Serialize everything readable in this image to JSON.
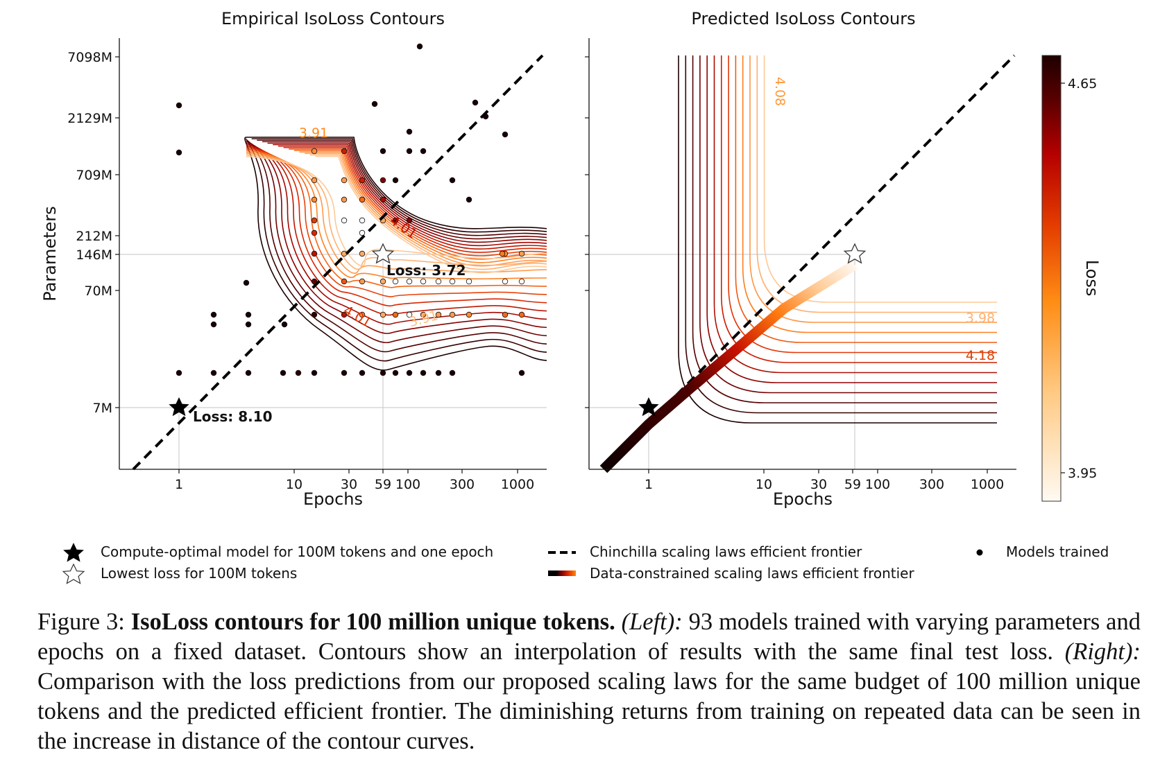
{
  "chart_data": [
    {
      "type": "contour",
      "title": "Empirical IsoLoss Contours",
      "xlabel": "Epochs",
      "ylabel": "Parameters",
      "x_scale": "log",
      "y_scale": "log",
      "x_ticks": [
        "1",
        "10",
        "30",
        "59",
        "100",
        "300",
        "1000"
      ],
      "y_ticks": [
        "7M",
        "70M",
        "146M",
        "212M",
        "709M",
        "2129M",
        "7098M"
      ],
      "contour_labels": [
        "3.91",
        "4.01",
        "4.01",
        "3.91"
      ],
      "annotations": [
        {
          "text": "Loss: 8.10",
          "marker": "filled-star",
          "epochs": 1,
          "params": "7M"
        },
        {
          "text": "Loss: 3.72",
          "marker": "open-star",
          "epochs": 59,
          "params": "146M"
        }
      ],
      "frontier": "Chinchilla scaling laws efficient frontier (dashed)",
      "points_description": "93 models trained (dots colored by final loss)"
    },
    {
      "type": "contour",
      "title": "Predicted IsoLoss Contours",
      "xlabel": "Epochs",
      "x_scale": "log",
      "y_scale": "log",
      "x_ticks": [
        "1",
        "10",
        "30",
        "59",
        "100",
        "300",
        "1000"
      ],
      "contour_labels": [
        "4.08",
        "3.98",
        "4.18"
      ],
      "colorbar": {
        "label": "Loss",
        "ticks": [
          "4.65",
          "3.95"
        ],
        "min": 3.93,
        "max": 4.67
      },
      "markers": [
        {
          "marker": "filled-star",
          "epochs": 1,
          "params": "7M"
        },
        {
          "marker": "open-star",
          "epochs": 59,
          "params": "146M"
        }
      ]
    }
  ],
  "legend": [
    {
      "symbol": "filled-star",
      "label": "Compute-optimal model for 100M tokens and one epoch"
    },
    {
      "symbol": "open-star",
      "label": "Lowest loss for 100M tokens"
    },
    {
      "symbol": "dashed-line",
      "label": "Chinchilla scaling laws efficient frontier"
    },
    {
      "symbol": "gradient-line",
      "label": "Data-constrained scaling laws efficient frontier"
    },
    {
      "symbol": "dot",
      "label": "Models trained"
    }
  ],
  "caption": {
    "prefix": "Figure 3: ",
    "bold": "IsoLoss contours for 100 million unique tokens.",
    "left_label": "(Left):",
    "left_text": " 93 models trained with varying parameters and epochs on a fixed dataset. Contours show an interpolation of results with the same final test loss. ",
    "right_label": "(Right):",
    "right_text": " Comparison with the loss predictions from our proposed scaling laws for the same budget of 100 million unique tokens and the predicted efficient frontier. The diminishing returns from training on repeated data can be seen in the increase in distance of the contour curves."
  },
  "colors": {
    "contour_dark": "#1a0000",
    "contour_mid": "#cc1100",
    "contour_light": "#ffaa55",
    "dashed": "#000000"
  }
}
